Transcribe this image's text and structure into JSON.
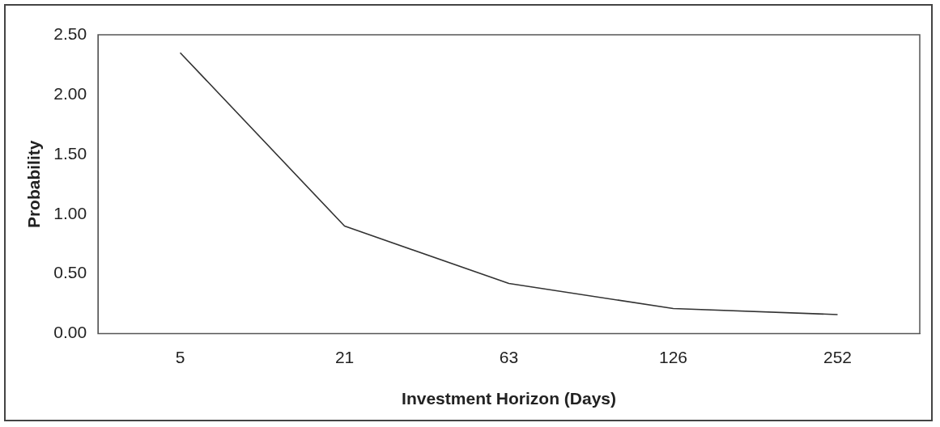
{
  "chart_data": {
    "type": "line",
    "xlabel": "Investment Horizon (Days)",
    "ylabel": "Probability",
    "categories": [
      "5",
      "21",
      "63",
      "126",
      "252"
    ],
    "series": [
      {
        "color": "#333333",
        "values": [
          2.35,
          0.9,
          0.42,
          0.21,
          0.16
        ]
      }
    ],
    "ylim": [
      0,
      2.5
    ],
    "yticks": [
      {
        "value": 0,
        "label": "0.00"
      },
      {
        "value": 0.5,
        "label": "0.50"
      },
      {
        "value": 1,
        "label": "1.00"
      },
      {
        "value": 1.5,
        "label": "1.50"
      },
      {
        "value": 2,
        "label": "2.00"
      },
      {
        "value": 2.5,
        "label": "2.50"
      }
    ],
    "grid": false,
    "legend": false,
    "marker": "none",
    "line_style": "solid"
  }
}
